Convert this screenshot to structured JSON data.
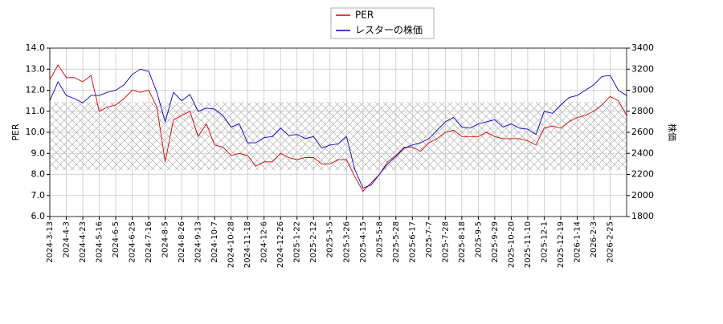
{
  "chart_data": {
    "type": "line",
    "categories": [
      "2024-3-13",
      null,
      "2024-4-3",
      null,
      "2024-4-23",
      null,
      "2024-5-16",
      null,
      "2024-6-5",
      null,
      "2024-6-25",
      null,
      "2024-7-16",
      null,
      "2024-8-5",
      null,
      "2024-8-26",
      null,
      "2024-9-13",
      null,
      "2024-10-7",
      null,
      "2024-10-28",
      null,
      "2024-11-18",
      null,
      "2024-12-6",
      null,
      "2024-12-26",
      null,
      "2025-1-22",
      null,
      "2025-2-12",
      null,
      "2025-3-5",
      null,
      "2025-3-26",
      null,
      "2025-4-15",
      null,
      "2025-5-8",
      null,
      "2025-5-28",
      null,
      "2025-6-17",
      null,
      "2025-7-7",
      null,
      "2025-7-28",
      null,
      "2025-8-18",
      null,
      "2025-9-5",
      null,
      "2025-9-29",
      null,
      "2025-10-20",
      null,
      "2025-11-10",
      null,
      "2025-12-1",
      null,
      "2025-12-19",
      null,
      "2026-1-14",
      null,
      "2026-2-3",
      null,
      "2026-2-25",
      null,
      null
    ],
    "series": [
      {
        "name": "PER",
        "color": "#d40000",
        "axis": "y",
        "values": [
          12.5,
          13.2,
          12.6,
          12.6,
          12.4,
          12.7,
          11.0,
          11.2,
          11.3,
          11.6,
          12.0,
          11.9,
          12.0,
          11.2,
          8.6,
          10.6,
          10.8,
          11.0,
          9.8,
          10.4,
          9.4,
          9.3,
          8.9,
          9.0,
          8.9,
          8.4,
          8.6,
          8.6,
          9.0,
          8.8,
          8.7,
          8.8,
          8.8,
          8.5,
          8.5,
          8.7,
          8.7,
          7.9,
          7.2,
          7.6,
          8.0,
          8.6,
          8.9,
          9.3,
          9.3,
          9.1,
          9.5,
          9.7,
          10.0,
          10.1,
          9.8,
          9.8,
          9.8,
          10.0,
          9.8,
          9.7,
          9.7,
          9.7,
          9.6,
          9.4,
          10.2,
          10.3,
          10.2,
          10.5,
          10.7,
          10.8,
          11.0,
          11.3,
          11.7,
          11.5,
          10.8
        ]
      },
      {
        "name": "レスターの株価",
        "color": "#0000cc",
        "axis": "y2",
        "values": [
          2900,
          3080,
          2950,
          2920,
          2880,
          2950,
          2950,
          2980,
          3000,
          3050,
          3150,
          3200,
          3180,
          2980,
          2700,
          2980,
          2900,
          2960,
          2800,
          2830,
          2820,
          2760,
          2650,
          2680,
          2500,
          2500,
          2550,
          2560,
          2640,
          2570,
          2580,
          2540,
          2560,
          2450,
          2480,
          2490,
          2560,
          2250,
          2070,
          2100,
          2200,
          2300,
          2370,
          2450,
          2480,
          2500,
          2540,
          2620,
          2700,
          2740,
          2650,
          2640,
          2680,
          2700,
          2720,
          2650,
          2680,
          2640,
          2630,
          2580,
          2800,
          2780,
          2860,
          2930,
          2950,
          3000,
          3050,
          3130,
          3140,
          3000,
          2950
        ]
      }
    ],
    "ylabel": "PER",
    "y2label": "株価",
    "ylim": [
      6,
      14
    ],
    "yticks": [
      {
        "value": 6,
        "label": "6.0"
      },
      {
        "value": 7,
        "label": "7.0"
      },
      {
        "value": 8,
        "label": "8.0"
      },
      {
        "value": 9,
        "label": "9.0"
      },
      {
        "value": 10,
        "label": "10.0"
      },
      {
        "value": 11,
        "label": "11.0"
      },
      {
        "value": 12,
        "label": "12.0"
      },
      {
        "value": 13,
        "label": "13.0"
      },
      {
        "value": 14,
        "label": "14.0"
      }
    ],
    "y2lim": [
      1800,
      3400
    ],
    "y2ticks": [
      1800,
      2000,
      2200,
      2400,
      2600,
      2800,
      3000,
      3200,
      3400
    ],
    "band": [
      8.2,
      11.45
    ],
    "grid": true,
    "legend": "top"
  }
}
